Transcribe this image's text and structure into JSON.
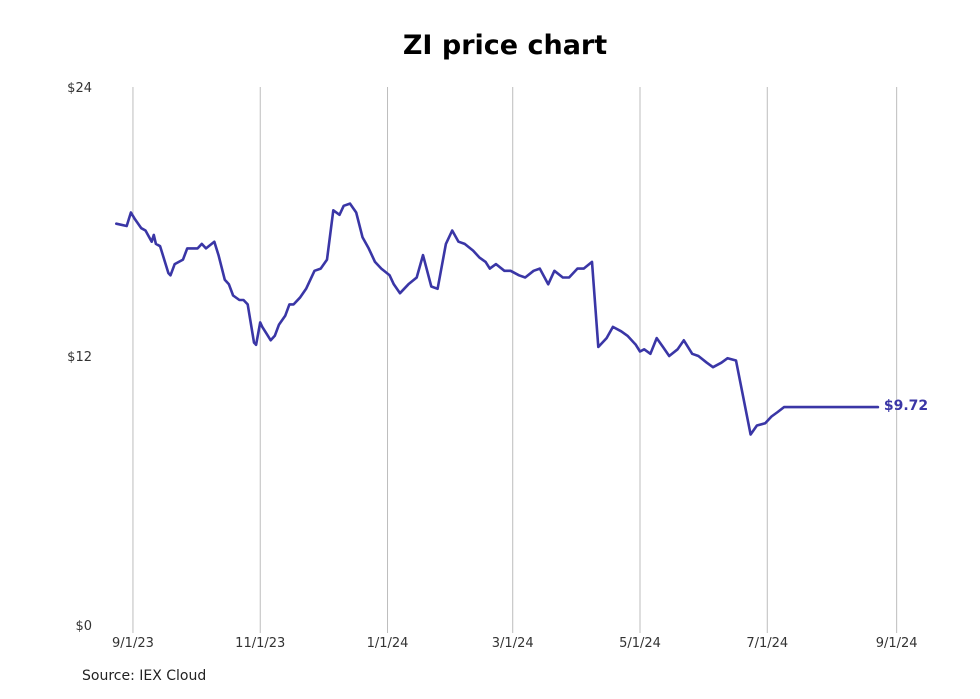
{
  "chart_data": {
    "type": "line",
    "title": "ZI price chart",
    "xlabel": "",
    "ylabel": "",
    "x_ticks": [
      "9/1/23",
      "11/1/23",
      "1/1/24",
      "3/1/24",
      "5/1/24",
      "7/1/24",
      "9/1/24"
    ],
    "y_ticks": [
      "$0",
      "$12",
      "$24"
    ],
    "ylim": [
      0,
      24
    ],
    "xlim": [
      "2023-08-21",
      "2024-09-05"
    ],
    "grid": "vertical",
    "line_color": "#3a36a6",
    "last_value_label": "$9.72",
    "series": [
      {
        "x": [
          "2023-08-24",
          "2023-08-29",
          "2023-08-31",
          "2023-09-02",
          "2023-09-05",
          "2023-09-07",
          "2023-09-10",
          "2023-09-11",
          "2023-09-12",
          "2023-09-14",
          "2023-09-18",
          "2023-09-19",
          "2023-09-21",
          "2023-09-25",
          "2023-09-27",
          "2023-10-02",
          "2023-10-04",
          "2023-10-06",
          "2023-10-10",
          "2023-10-12",
          "2023-10-15",
          "2023-10-17",
          "2023-10-19",
          "2023-10-22",
          "2023-10-24",
          "2023-10-26",
          "2023-10-29",
          "2023-10-30",
          "2023-11-01",
          "2023-11-02",
          "2023-11-04",
          "2023-11-06",
          "2023-11-08",
          "2023-11-10",
          "2023-11-13",
          "2023-11-15",
          "2023-11-17",
          "2023-11-20",
          "2023-11-23",
          "2023-11-27",
          "2023-11-30",
          "2023-12-03",
          "2023-12-06",
          "2023-12-09",
          "2023-12-11",
          "2023-12-14",
          "2023-12-17",
          "2023-12-20",
          "2023-12-23",
          "2023-12-26",
          "2023-12-29",
          "2024-01-02",
          "2024-01-04",
          "2024-01-07",
          "2024-01-11",
          "2024-01-15",
          "2024-01-18",
          "2024-01-22",
          "2024-01-25",
          "2024-01-29",
          "2024-02-01",
          "2024-02-04",
          "2024-02-07",
          "2024-02-11",
          "2024-02-14",
          "2024-02-17",
          "2024-02-19",
          "2024-02-22",
          "2024-02-26",
          "2024-02-29",
          "2024-03-04",
          "2024-03-07",
          "2024-03-11",
          "2024-03-14",
          "2024-03-18",
          "2024-03-21",
          "2024-03-25",
          "2024-03-28",
          "2024-04-01",
          "2024-04-04",
          "2024-04-08",
          "2024-04-11",
          "2024-04-15",
          "2024-04-18",
          "2024-04-22",
          "2024-04-25",
          "2024-04-29",
          "2024-05-01",
          "2024-05-03",
          "2024-05-06",
          "2024-05-09",
          "2024-05-12",
          "2024-05-15",
          "2024-05-19",
          "2024-05-22",
          "2024-05-26",
          "2024-05-29",
          "2024-06-02",
          "2024-06-05",
          "2024-06-09",
          "2024-06-12",
          "2024-06-16",
          "2024-06-19",
          "2024-06-23",
          "2024-06-26",
          "2024-06-30",
          "2024-07-03",
          "2024-07-06",
          "2024-07-09",
          "2024-07-12",
          "2024-07-15",
          "2024-07-18",
          "2024-07-21",
          "2024-07-24",
          "2024-07-27",
          "2024-07-30",
          "2024-08-01",
          "2024-08-03",
          "2024-08-06",
          "2024-08-09",
          "2024-08-12",
          "2024-08-15",
          "2024-08-18",
          "2024-08-21",
          "2024-08-23"
        ],
        "values": [
          17.9,
          17.8,
          18.4,
          18.1,
          17.7,
          17.6,
          17.1,
          17.4,
          17.0,
          16.9,
          15.7,
          15.6,
          16.1,
          16.3,
          16.8,
          16.8,
          17.0,
          16.8,
          17.1,
          16.5,
          15.4,
          15.2,
          14.7,
          14.5,
          14.5,
          14.3,
          12.6,
          12.5,
          13.5,
          13.3,
          13.0,
          12.7,
          12.9,
          13.4,
          13.8,
          14.3,
          14.3,
          14.6,
          15.0,
          15.8,
          15.9,
          16.3,
          18.5,
          18.3,
          18.7,
          18.8,
          18.4,
          17.3,
          16.8,
          16.2,
          15.9,
          15.6,
          15.2,
          14.8,
          15.2,
          15.5,
          16.5,
          15.1,
          15.0,
          17.0,
          17.6,
          17.1,
          17.0,
          16.7,
          16.4,
          16.2,
          15.9,
          16.1,
          15.8,
          15.8,
          15.6,
          15.5,
          15.8,
          15.9,
          15.2,
          15.8,
          15.5,
          15.5,
          15.9,
          15.9,
          16.2,
          12.4,
          12.8,
          13.3,
          13.1,
          12.9,
          12.5,
          12.2,
          12.3,
          12.1,
          12.8,
          12.4,
          12.0,
          12.3,
          12.7,
          12.1,
          12.0,
          11.7,
          11.5,
          11.7,
          11.9,
          11.8,
          10.4,
          8.5,
          8.9,
          9.0,
          9.3,
          9.5,
          9.72,
          9.72,
          9.72,
          9.72,
          9.72,
          9.72,
          9.72,
          9.72,
          9.72,
          9.72,
          9.72,
          9.72,
          9.72,
          9.72,
          9.72,
          9.72,
          9.72
        ]
      }
    ]
  },
  "footer": {
    "source": "Source: IEX Cloud"
  }
}
